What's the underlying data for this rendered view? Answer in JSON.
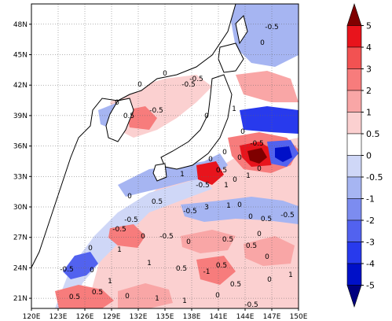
{
  "map": {
    "lon_ticks": [
      "120E",
      "123E",
      "126E",
      "129E",
      "132E",
      "135E",
      "138E",
      "141E",
      "144E",
      "147E",
      "150E"
    ],
    "lat_ticks": [
      "21N",
      "24N",
      "27N",
      "30N",
      "33N",
      "36N",
      "39N",
      "42N",
      "45N",
      "48N"
    ],
    "extent": {
      "lon": [
        120,
        150
      ],
      "lat": [
        20,
        50
      ]
    }
  },
  "colorbar": {
    "labels": [
      "5",
      "4",
      "3",
      "2",
      "1",
      "0.5",
      "0",
      "-0.5",
      "-1",
      "-2",
      "-3",
      "-4",
      "-5"
    ],
    "colors": [
      "#7f0000",
      "#e8141c",
      "#f25252",
      "#f77c7c",
      "#f9a6a6",
      "#fbd0d0",
      "#ffffff",
      "#cfd7f7",
      "#a6b5f2",
      "#7c8cf0",
      "#5262ef",
      "#283aed",
      "#0010c8",
      "#00007f"
    ]
  },
  "contour_labels": [
    "-0.5",
    "0",
    "-0.5",
    "-0.5",
    "0",
    "-0.5",
    "0",
    "0.5",
    "0",
    "1",
    "0",
    "-0.5",
    "0",
    "0",
    "0",
    "1",
    "0",
    "0.5",
    "0",
    "-0.5",
    "1",
    "0",
    "1",
    "0",
    "0.5",
    "-0.5",
    "3",
    "1",
    "0",
    "0",
    "-0.5",
    "0.5",
    "1",
    "0",
    "-0.5",
    "-0.5",
    "-0.5",
    "0",
    "0.5",
    "-1",
    "0",
    "-0.5",
    "0",
    "0.5",
    "0.5",
    "0",
    "1",
    "0",
    "0.5",
    "0.5",
    "0",
    "1",
    "1",
    "0",
    "0.5",
    "-0.5",
    "1",
    "1",
    "0.5",
    "0"
  ]
}
